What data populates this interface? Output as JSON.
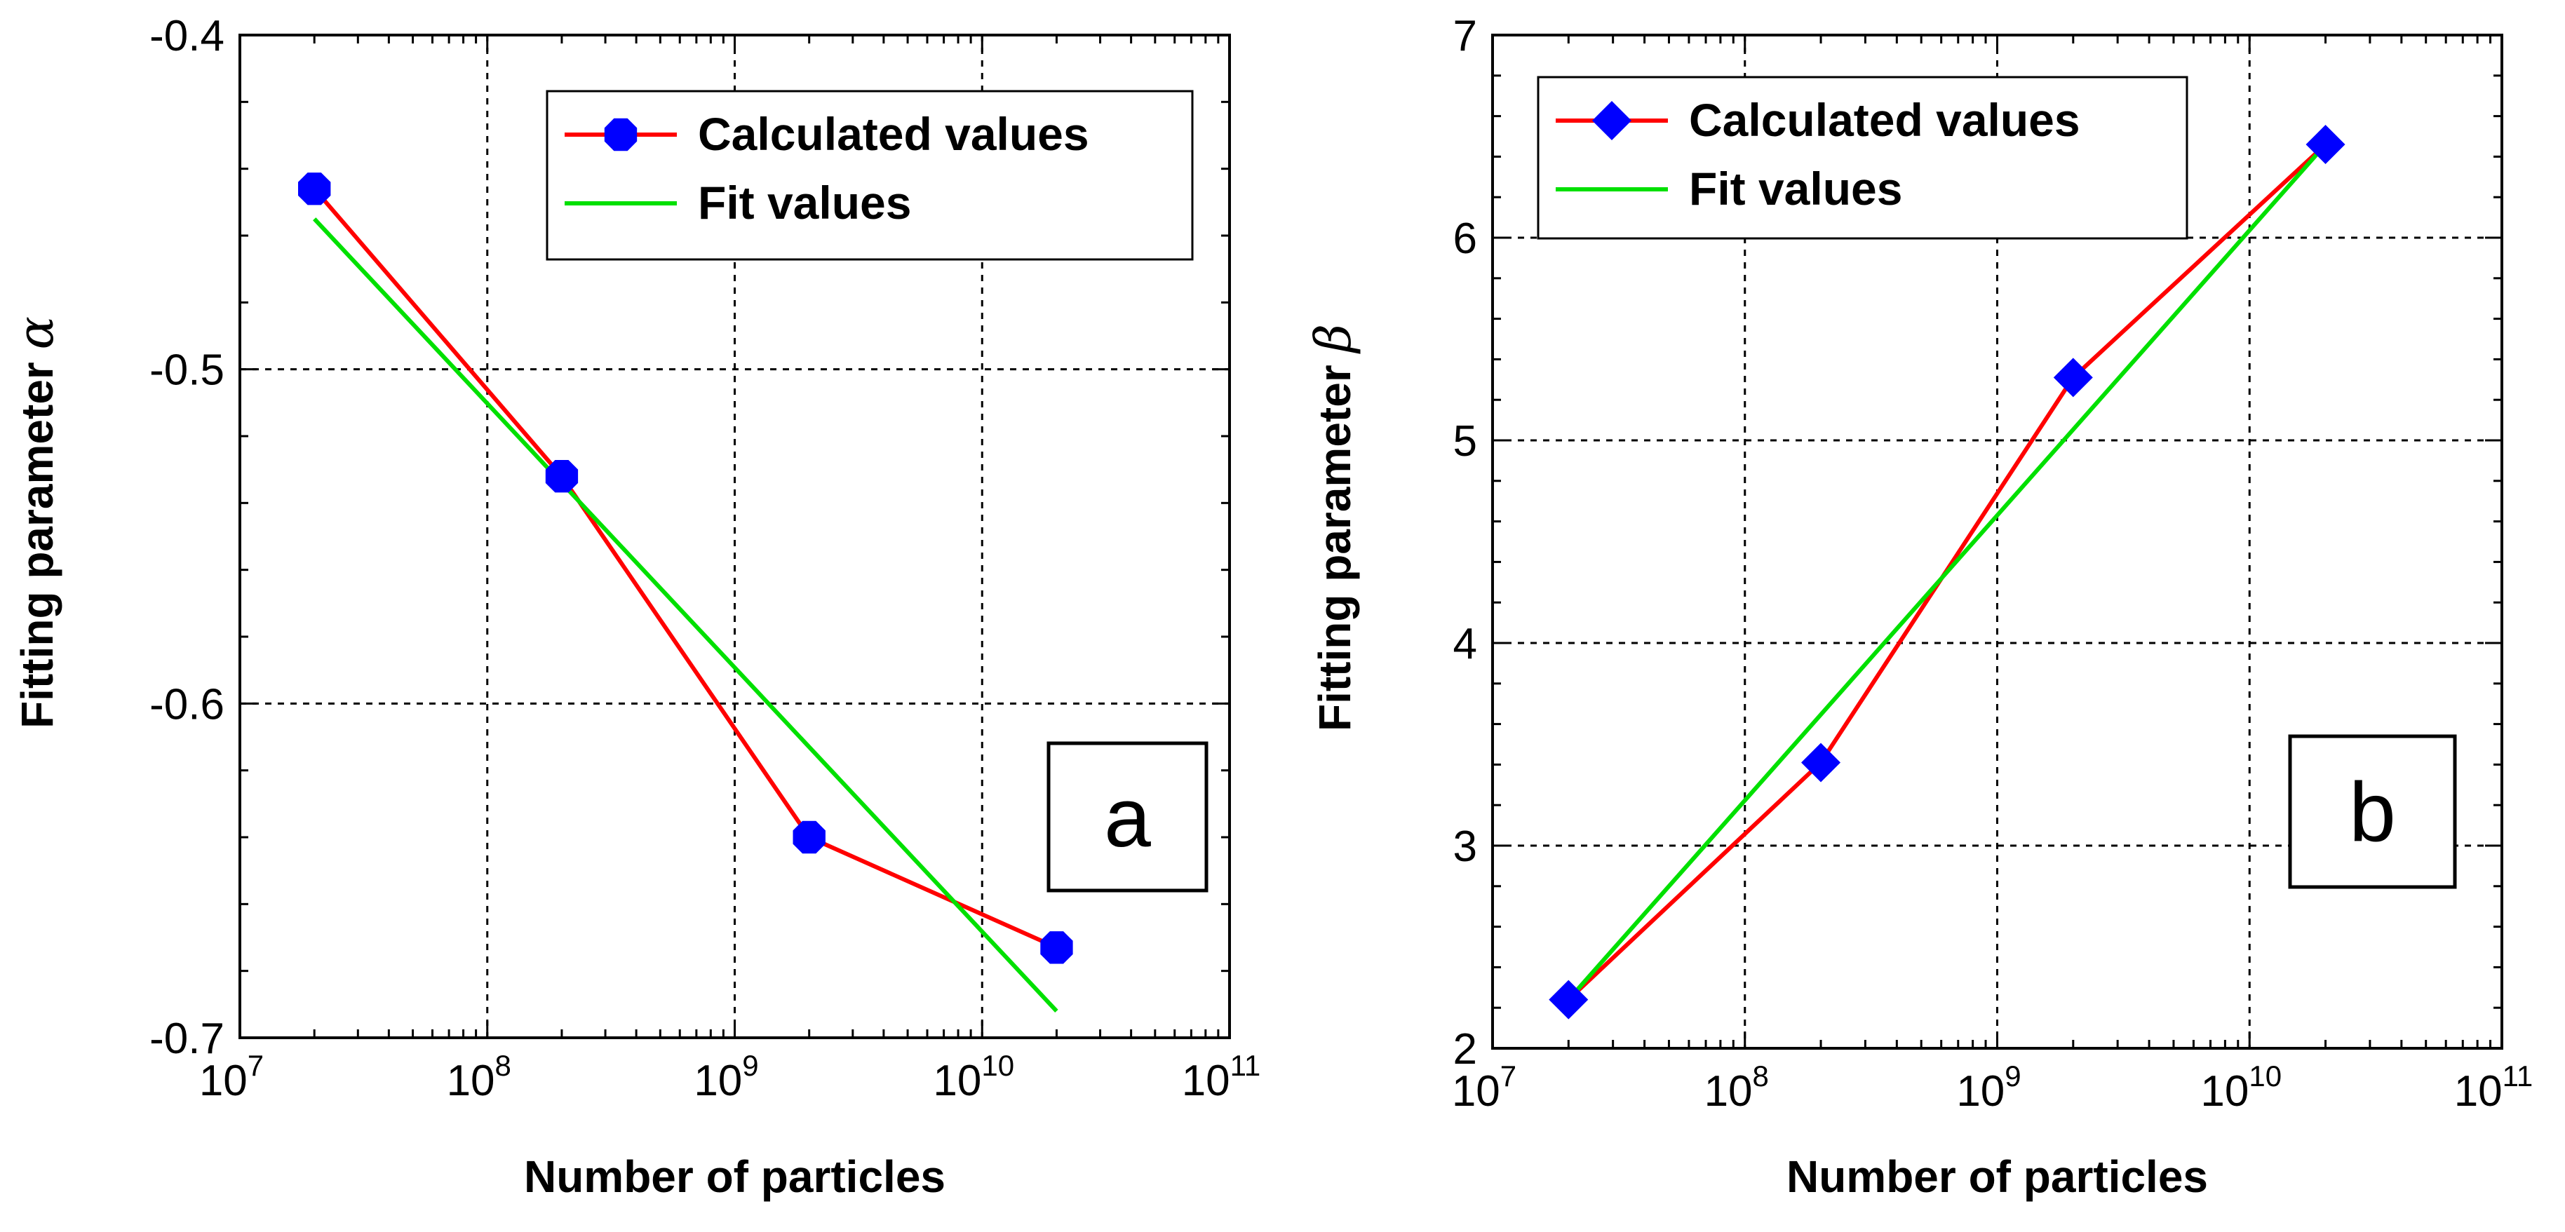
{
  "chart_data": [
    {
      "type": "line",
      "panel_label": "a",
      "xlabel": "Number of particles",
      "ylabel": "Fitting parameter",
      "ylabel_symbol": "α",
      "xscale": "log",
      "xlim": [
        10000000.0,
        100000000000.0
      ],
      "ylim": [
        -0.7,
        -0.4
      ],
      "xtick_exponents": [
        "7",
        "8",
        "9",
        "10",
        "11"
      ],
      "ytick_labels": [
        "-0.4",
        "-0.5",
        "-0.6",
        "-0.7"
      ],
      "ytick_values": [
        -0.4,
        -0.5,
        -0.6,
        -0.7
      ],
      "grid": true,
      "legend_position": "top-right",
      "series": [
        {
          "name": "Calculated values",
          "color": "#ff0000",
          "marker": "circle",
          "marker_color": "#0000ff",
          "x": [
            20000000.0,
            200000000.0,
            2000000000.0,
            20000000000.0
          ],
          "y": [
            -0.446,
            -0.532,
            -0.64,
            -0.673
          ]
        },
        {
          "name": "Fit values",
          "color": "#00e000",
          "marker": "none",
          "x": [
            20000000.0,
            20000000000.0
          ],
          "y": [
            -0.455,
            -0.692
          ]
        }
      ]
    },
    {
      "type": "line",
      "panel_label": "b",
      "xlabel": "Number of particles",
      "ylabel": "Fitting parameter",
      "ylabel_symbol": "β",
      "xscale": "log",
      "xlim": [
        10000000.0,
        100000000000.0
      ],
      "ylim": [
        2,
        7
      ],
      "xtick_exponents": [
        "7",
        "8",
        "9",
        "10",
        "11"
      ],
      "ytick_labels": [
        "2",
        "3",
        "4",
        "5",
        "6",
        "7"
      ],
      "ytick_values": [
        2,
        3,
        4,
        5,
        6,
        7
      ],
      "grid": true,
      "legend_position": "top-left",
      "series": [
        {
          "name": "Calculated values",
          "color": "#ff0000",
          "marker": "diamond",
          "marker_color": "#0000ff",
          "x": [
            20000000.0,
            200000000.0,
            2000000000.0,
            20000000000.0
          ],
          "y": [
            2.24,
            3.41,
            5.31,
            6.46
          ]
        },
        {
          "name": "Fit values",
          "color": "#00e000",
          "marker": "none",
          "x": [
            20000000.0,
            20000000000.0
          ],
          "y": [
            2.24,
            6.46
          ]
        }
      ]
    }
  ]
}
